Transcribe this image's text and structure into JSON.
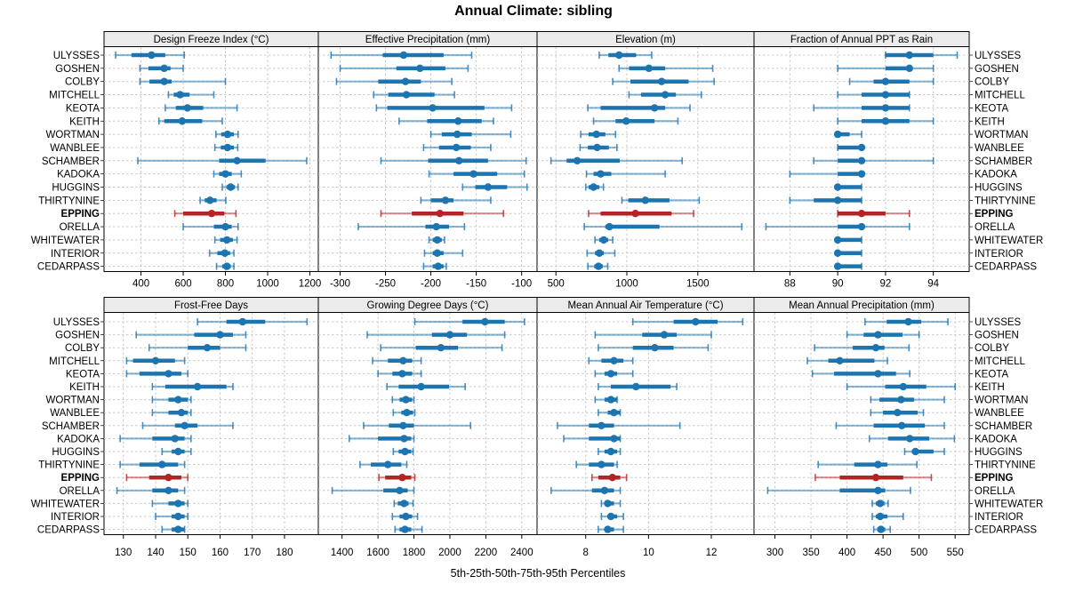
{
  "title": "Annual Climate: sibling",
  "caption": "5th-25th-50th-75th-95th Percentiles",
  "highlight_station": "EPPING",
  "colors": {
    "series_blue": "#1c74b0",
    "series_red": "#b32424",
    "strip_bg": "#ebebeb",
    "panel_border": "#000000",
    "grid": "#c9c9c9",
    "text": "#000000"
  },
  "stations": [
    "ULYSSES",
    "GOSHEN",
    "COLBY",
    "MITCHELL",
    "KEOTA",
    "KEITH",
    "WORTMAN",
    "WANBLEE",
    "SCHAMBER",
    "KADOKA",
    "HUGGINS",
    "THIRTYNINE",
    "EPPING",
    "ORELLA",
    "WHITEWATER",
    "INTERIOR",
    "CEDARPASS"
  ],
  "chart_data": {
    "type": "dotplot-percentiles",
    "percentile_labels": [
      "5th",
      "25th",
      "50th",
      "75th",
      "95th"
    ],
    "legend_position": "none",
    "grid": "dashed",
    "panels": [
      {
        "title": "Design Freeze Index (°C)",
        "xlim": [
          225,
          1240
        ],
        "ticks": [
          400,
          600,
          800,
          1000,
          1200
        ],
        "values": [
          [
            280,
            355,
            450,
            515,
            605
          ],
          [
            395,
            435,
            510,
            540,
            600
          ],
          [
            395,
            440,
            510,
            545,
            800
          ],
          [
            530,
            555,
            585,
            630,
            745
          ],
          [
            515,
            565,
            620,
            695,
            855
          ],
          [
            485,
            510,
            595,
            690,
            785
          ],
          [
            755,
            780,
            810,
            840,
            860
          ],
          [
            750,
            778,
            810,
            840,
            858
          ],
          [
            385,
            770,
            855,
            990,
            1185
          ],
          [
            745,
            770,
            800,
            830,
            875
          ],
          [
            785,
            805,
            825,
            845,
            860
          ],
          [
            680,
            702,
            727,
            758,
            802
          ],
          [
            560,
            600,
            735,
            795,
            850
          ],
          [
            600,
            745,
            800,
            830,
            860
          ],
          [
            750,
            775,
            807,
            835,
            855
          ],
          [
            725,
            762,
            797,
            822,
            840
          ],
          [
            758,
            785,
            807,
            825,
            840
          ]
        ]
      },
      {
        "title": "Effective Precipitation (mm)",
        "xlim": [
          -324,
          -83
        ],
        "ticks": [
          -300,
          -250,
          -200,
          -150,
          -100
        ],
        "values": [
          [
            -310,
            -253,
            -230,
            -186,
            -155
          ],
          [
            -300,
            -238,
            -212,
            -184,
            -159
          ],
          [
            -304,
            -258,
            -228,
            -211,
            -177
          ],
          [
            -263,
            -247,
            -227,
            -196,
            -174
          ],
          [
            -260,
            -248,
            -198,
            -141,
            -111
          ],
          [
            -235,
            -204,
            -170,
            -144,
            -131
          ],
          [
            -200,
            -188,
            -171,
            -155,
            -112
          ],
          [
            -208,
            -191,
            -172,
            -156,
            -134
          ],
          [
            -255,
            -203,
            -169,
            -137,
            -95
          ],
          [
            -202,
            -175,
            -153,
            -127,
            -97
          ],
          [
            -165,
            -151,
            -137,
            -116,
            -94
          ],
          [
            -211,
            -200,
            -184,
            -175,
            -134
          ],
          [
            -255,
            -221,
            -190,
            -164,
            -120
          ],
          [
            -280,
            -206,
            -194,
            -180,
            -163
          ],
          [
            -202,
            -198,
            -193,
            -188,
            -185
          ],
          [
            -207,
            -198,
            -193,
            -186,
            -165
          ],
          [
            -208,
            -198,
            -192,
            -186,
            -183
          ]
        ]
      },
      {
        "title": "Elevation (m)",
        "xlim": [
          367,
          1896
        ],
        "ticks": [
          500,
          1000,
          1500
        ],
        "values": [
          [
            805,
            870,
            945,
            1065,
            1175
          ],
          [
            945,
            1015,
            1155,
            1270,
            1605
          ],
          [
            900,
            1025,
            1245,
            1435,
            1615
          ],
          [
            1015,
            1100,
            1270,
            1345,
            1525
          ],
          [
            725,
            815,
            1195,
            1270,
            1445
          ],
          [
            765,
            920,
            995,
            1195,
            1360
          ],
          [
            675,
            730,
            785,
            848,
            920
          ],
          [
            670,
            725,
            790,
            873,
            930
          ],
          [
            465,
            575,
            650,
            950,
            1390
          ],
          [
            715,
            765,
            815,
            890,
            1270
          ],
          [
            710,
            730,
            765,
            805,
            835
          ],
          [
            965,
            1010,
            1130,
            1300,
            1510
          ],
          [
            730,
            815,
            1060,
            1315,
            1470
          ],
          [
            700,
            848,
            877,
            1230,
            1810
          ],
          [
            775,
            805,
            837,
            868,
            900
          ],
          [
            720,
            775,
            806,
            837,
            915
          ],
          [
            725,
            770,
            800,
            830,
            865
          ]
        ]
      },
      {
        "title": "Fraction of Annual PPT as Rain",
        "xlim": [
          86.5,
          95.5
        ],
        "ticks": [
          88,
          90,
          92,
          94
        ],
        "values": [
          [
            92,
            92,
            93,
            94,
            95
          ],
          [
            90,
            92,
            93,
            93,
            94
          ],
          [
            90.5,
            91.5,
            92,
            93,
            94
          ],
          [
            90,
            91,
            92,
            93,
            93
          ],
          [
            89,
            91,
            92,
            93,
            93
          ],
          [
            90,
            91,
            92,
            93,
            94
          ],
          [
            90,
            90,
            90,
            90.5,
            91
          ],
          [
            90,
            90,
            91,
            91,
            91
          ],
          [
            89,
            90,
            91,
            91,
            94
          ],
          [
            88,
            90,
            91,
            91,
            91
          ],
          [
            90,
            90,
            90,
            91,
            91
          ],
          [
            88,
            89,
            90,
            91,
            91
          ],
          [
            90,
            90,
            91,
            92,
            93
          ],
          [
            87,
            90,
            91,
            91,
            93
          ],
          [
            90,
            90,
            90,
            91,
            91
          ],
          [
            90,
            90,
            90,
            91,
            91
          ],
          [
            90,
            90,
            90,
            91,
            91
          ]
        ]
      },
      {
        "title": "Frost-Free Days",
        "xlim": [
          124,
          190.5
        ],
        "ticks": [
          130,
          140,
          150,
          160,
          170,
          180
        ],
        "values": [
          [
            153,
            162,
            167,
            174,
            187
          ],
          [
            134,
            152,
            160,
            164,
            168
          ],
          [
            138,
            150,
            156,
            160,
            168
          ],
          [
            131,
            133,
            140,
            146,
            149
          ],
          [
            131,
            135,
            144,
            148,
            150
          ],
          [
            139,
            143,
            153,
            162,
            164
          ],
          [
            139,
            144,
            147,
            150,
            151
          ],
          [
            139,
            144,
            148,
            150,
            151
          ],
          [
            136,
            146,
            149,
            153,
            164
          ],
          [
            129,
            139,
            146,
            149,
            151
          ],
          [
            142,
            145,
            147,
            149,
            151
          ],
          [
            129,
            135,
            142,
            147,
            149
          ],
          [
            131,
            138,
            144,
            148,
            150
          ],
          [
            128,
            139,
            144,
            147,
            149
          ],
          [
            139,
            144,
            147,
            149,
            150
          ],
          [
            140,
            145,
            147,
            149,
            150
          ],
          [
            142,
            145,
            147,
            149,
            149
          ]
        ]
      },
      {
        "title": "Growing Degree Days (°C)",
        "xlim": [
          1268,
          2485
        ],
        "ticks": [
          1400,
          1600,
          1800,
          2000,
          2200,
          2400
        ],
        "values": [
          [
            1805,
            2070,
            2195,
            2305,
            2415
          ],
          [
            1540,
            1900,
            2000,
            2095,
            2305
          ],
          [
            1615,
            1810,
            1950,
            2045,
            2290
          ],
          [
            1570,
            1655,
            1740,
            1790,
            1840
          ],
          [
            1600,
            1680,
            1735,
            1790,
            1840
          ],
          [
            1650,
            1715,
            1840,
            1995,
            2085
          ],
          [
            1680,
            1720,
            1755,
            1790,
            1800
          ],
          [
            1685,
            1730,
            1760,
            1795,
            1805
          ],
          [
            1520,
            1660,
            1740,
            1800,
            2115
          ],
          [
            1440,
            1600,
            1745,
            1785,
            1800
          ],
          [
            1685,
            1715,
            1750,
            1785,
            1795
          ],
          [
            1500,
            1560,
            1655,
            1730,
            1760
          ],
          [
            1605,
            1640,
            1735,
            1785,
            1805
          ],
          [
            1345,
            1630,
            1720,
            1765,
            1800
          ],
          [
            1690,
            1710,
            1745,
            1770,
            1795
          ],
          [
            1680,
            1720,
            1755,
            1790,
            1820
          ],
          [
            1695,
            1720,
            1750,
            1785,
            1845
          ]
        ]
      },
      {
        "title": "Mean Annual Air Temperature (°C)",
        "xlim": [
          6.45,
          13.36
        ],
        "ticks": [
          8,
          10,
          12
        ],
        "values": [
          [
            9.5,
            10.8,
            11.5,
            12.2,
            13.0
          ],
          [
            8.3,
            9.8,
            10.5,
            10.9,
            12.0
          ],
          [
            8.4,
            9.5,
            10.2,
            10.8,
            11.9
          ],
          [
            8.1,
            8.5,
            8.9,
            9.2,
            9.5
          ],
          [
            8.3,
            8.6,
            8.8,
            9.0,
            9.5
          ],
          [
            8.4,
            8.8,
            9.6,
            10.7,
            10.9
          ],
          [
            8.3,
            8.6,
            8.8,
            9.0,
            9.0
          ],
          [
            8.4,
            8.7,
            8.9,
            9.1,
            9.1
          ],
          [
            7.1,
            8.1,
            8.5,
            8.9,
            11.0
          ],
          [
            7.3,
            8.1,
            8.9,
            9.1,
            9.1
          ],
          [
            8.4,
            8.6,
            8.8,
            9.0,
            9.1
          ],
          [
            7.7,
            8.1,
            8.5,
            8.9,
            9.0
          ],
          [
            8.2,
            8.4,
            8.85,
            9.1,
            9.3
          ],
          [
            6.9,
            8.2,
            8.6,
            8.9,
            9.1
          ],
          [
            8.5,
            8.6,
            8.7,
            8.9,
            9.1
          ],
          [
            8.5,
            8.7,
            8.8,
            9.0,
            9.2
          ],
          [
            8.4,
            8.6,
            8.7,
            8.9,
            9.2
          ]
        ]
      },
      {
        "title": "Mean Annual Precipitation (mm)",
        "xlim": [
          271,
          569.5
        ],
        "ticks": [
          300,
          350,
          400,
          450,
          500,
          550
        ],
        "values": [
          [
            425,
            455,
            485,
            503,
            540
          ],
          [
            400,
            423,
            443,
            477,
            500
          ],
          [
            355,
            408,
            440,
            452,
            486
          ],
          [
            345,
            374,
            390,
            438,
            456
          ],
          [
            352,
            382,
            443,
            468,
            487
          ],
          [
            400,
            453,
            478,
            510,
            550
          ],
          [
            433,
            445,
            475,
            493,
            535
          ],
          [
            433,
            450,
            470,
            498,
            506
          ],
          [
            385,
            437,
            476,
            508,
            535
          ],
          [
            431,
            457,
            487,
            514,
            549
          ],
          [
            480,
            490,
            495,
            520,
            535
          ],
          [
            360,
            410,
            443,
            456,
            497
          ],
          [
            356,
            390,
            440,
            478,
            517
          ],
          [
            290,
            390,
            443,
            453,
            488
          ],
          [
            435,
            440,
            446,
            452,
            457
          ],
          [
            435,
            440,
            446,
            456,
            478
          ],
          [
            437,
            442,
            447,
            453,
            460
          ]
        ]
      }
    ]
  }
}
